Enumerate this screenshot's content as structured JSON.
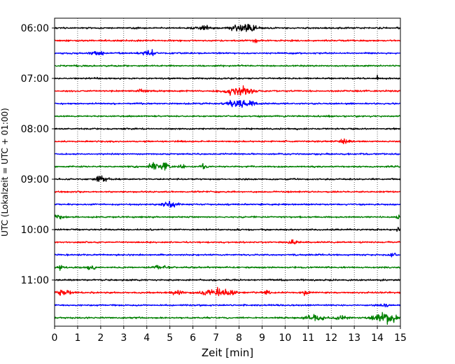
{
  "chart_data": {
    "type": "line",
    "title": "",
    "xlabel": "Zeit  [min]",
    "ylabel": "UTC (Lokalzeit = UTC + 01:00)",
    "xlim": [
      0,
      15
    ],
    "xticks": [
      0,
      1,
      2,
      3,
      4,
      5,
      6,
      7,
      8,
      9,
      10,
      11,
      12,
      13,
      14,
      15
    ],
    "ytick_labels": [
      "06:00",
      "07:00",
      "08:00",
      "09:00",
      "10:00",
      "11:00"
    ],
    "row_start_times": [
      "06:00",
      "06:15",
      "06:30",
      "06:45",
      "07:00",
      "07:15",
      "07:30",
      "07:45",
      "08:00",
      "08:15",
      "08:30",
      "08:45",
      "09:00",
      "09:15",
      "09:30",
      "09:45",
      "10:00",
      "10:15",
      "10:30",
      "10:45",
      "11:00",
      "11:15",
      "11:30",
      "11:45"
    ],
    "color_cycle": [
      "#000000",
      "#ff0000",
      "#0000ff",
      "#008000"
    ],
    "grid": "vertical dotted lines at each minute",
    "trace_events": [
      {
        "row": 0,
        "time_min": 6.5,
        "amplitude": 0.25,
        "duration_min": 0.8
      },
      {
        "row": 0,
        "time_min": 8.2,
        "amplitude": 1.0,
        "duration_min": 0.9
      },
      {
        "row": 1,
        "time_min": 8.7,
        "amplitude": 0.3,
        "duration_min": 0.2
      },
      {
        "row": 2,
        "time_min": 1.8,
        "amplitude": 0.35,
        "duration_min": 0.5
      },
      {
        "row": 2,
        "time_min": 4.1,
        "amplitude": 0.45,
        "duration_min": 0.5
      },
      {
        "row": 4,
        "time_min": 14.0,
        "amplitude": 0.4,
        "duration_min": 0.1
      },
      {
        "row": 5,
        "time_min": 3.8,
        "amplitude": 0.25,
        "duration_min": 0.4
      },
      {
        "row": 5,
        "time_min": 8.0,
        "amplitude": 0.75,
        "duration_min": 1.2
      },
      {
        "row": 6,
        "time_min": 8.1,
        "amplitude": 0.8,
        "duration_min": 1.0
      },
      {
        "row": 9,
        "time_min": 12.6,
        "amplitude": 0.5,
        "duration_min": 0.4
      },
      {
        "row": 10,
        "time_min": 13.3,
        "amplitude": 0.3,
        "duration_min": 0.1
      },
      {
        "row": 11,
        "time_min": 4.3,
        "amplitude": 0.55,
        "duration_min": 0.4
      },
      {
        "row": 11,
        "time_min": 4.8,
        "amplitude": 0.55,
        "duration_min": 0.35
      },
      {
        "row": 11,
        "time_min": 5.5,
        "amplitude": 0.45,
        "duration_min": 0.2
      },
      {
        "row": 11,
        "time_min": 6.5,
        "amplitude": 0.45,
        "duration_min": 0.25
      },
      {
        "row": 12,
        "time_min": 2.1,
        "amplitude": 0.55,
        "duration_min": 0.6
      },
      {
        "row": 14,
        "time_min": 5.0,
        "amplitude": 0.5,
        "duration_min": 0.7
      },
      {
        "row": 15,
        "time_min": 0.2,
        "amplitude": 0.35,
        "duration_min": 0.4
      },
      {
        "row": 15,
        "time_min": 14.9,
        "amplitude": 0.65,
        "duration_min": 0.1
      },
      {
        "row": 16,
        "time_min": 14.9,
        "amplitude": 0.45,
        "duration_min": 0.1
      },
      {
        "row": 17,
        "time_min": 10.3,
        "amplitude": 0.35,
        "duration_min": 0.3
      },
      {
        "row": 18,
        "time_min": 14.7,
        "amplitude": 0.35,
        "duration_min": 0.3
      },
      {
        "row": 19,
        "time_min": 0.2,
        "amplitude": 0.35,
        "duration_min": 0.4
      },
      {
        "row": 19,
        "time_min": 1.5,
        "amplitude": 0.3,
        "duration_min": 0.6
      },
      {
        "row": 19,
        "time_min": 4.6,
        "amplitude": 0.35,
        "duration_min": 0.6
      },
      {
        "row": 20,
        "time_min": 9.8,
        "amplitude": 0.3,
        "duration_min": 0.1
      },
      {
        "row": 21,
        "time_min": 0.4,
        "amplitude": 0.45,
        "duration_min": 0.6
      },
      {
        "row": 21,
        "time_min": 5.3,
        "amplitude": 0.4,
        "duration_min": 0.4
      },
      {
        "row": 21,
        "time_min": 7.1,
        "amplitude": 0.65,
        "duration_min": 1.4
      },
      {
        "row": 21,
        "time_min": 9.2,
        "amplitude": 0.4,
        "duration_min": 0.3
      },
      {
        "row": 21,
        "time_min": 10.9,
        "amplitude": 0.4,
        "duration_min": 0.3
      },
      {
        "row": 22,
        "time_min": 14.3,
        "amplitude": 0.35,
        "duration_min": 0.4
      },
      {
        "row": 23,
        "time_min": 11.3,
        "amplitude": 0.4,
        "duration_min": 1.0
      },
      {
        "row": 23,
        "time_min": 12.4,
        "amplitude": 0.4,
        "duration_min": 0.5
      },
      {
        "row": 23,
        "time_min": 14.4,
        "amplitude": 0.8,
        "duration_min": 1.0
      }
    ]
  }
}
